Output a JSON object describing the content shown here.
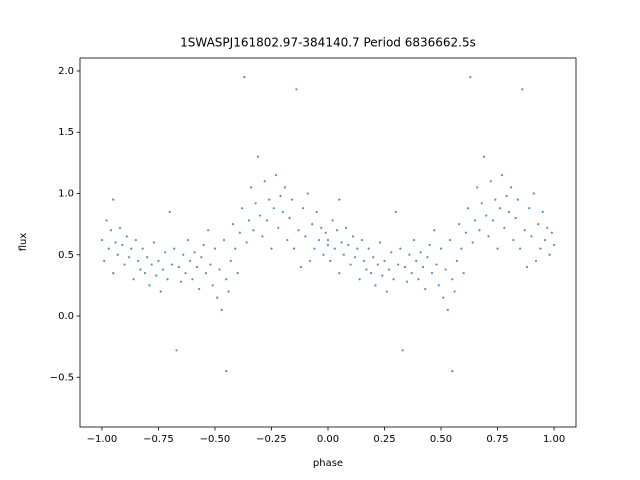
{
  "chart_data": {
    "type": "scatter",
    "title": "1SWASPJ161802.97-384140.7 Period 6836662.5s",
    "x_label": "phase",
    "y_label": "flux",
    "xlim": [
      -1.097,
      1.097
    ],
    "ylim": [
      -0.906,
      2.106
    ],
    "xticks": [
      {
        "value": -1,
        "label": "−1.00"
      },
      {
        "value": -0.75,
        "label": "−0.75"
      },
      {
        "value": -0.5,
        "label": "−0.50"
      },
      {
        "value": -0.25,
        "label": "−0.25"
      },
      {
        "value": 0,
        "label": "0.00"
      },
      {
        "value": 0.25,
        "label": "0.25"
      },
      {
        "value": 0.5,
        "label": "0.50"
      },
      {
        "value": 0.75,
        "label": "0.75"
      },
      {
        "value": 1,
        "label": "1.00"
      }
    ],
    "yticks": [
      {
        "value": -0.5,
        "label": "−0.5"
      },
      {
        "value": 0,
        "label": "0.0"
      },
      {
        "value": 0.5,
        "label": "0.5"
      },
      {
        "value": 1,
        "label": "1.0"
      },
      {
        "value": 1.5,
        "label": "1.5"
      },
      {
        "value": 2,
        "label": "2.0"
      }
    ],
    "color": "#1f77b4",
    "x": [
      -1,
      -0.99,
      -0.98,
      -0.97,
      -0.96,
      -0.95,
      -0.95,
      -0.94,
      -0.93,
      -0.92,
      -0.91,
      -0.9,
      -0.89,
      -0.88,
      -0.87,
      -0.86,
      -0.85,
      -0.84,
      -0.83,
      -0.82,
      -0.81,
      -0.8,
      -0.79,
      -0.78,
      -0.77,
      -0.76,
      -0.75,
      -0.74,
      -0.73,
      -0.72,
      -0.71,
      -0.7,
      -0.69,
      -0.68,
      -0.67,
      -0.66,
      -0.65,
      -0.64,
      -0.63,
      -0.62,
      -0.61,
      -0.6,
      -0.59,
      -0.58,
      -0.57,
      -0.56,
      -0.55,
      -0.54,
      -0.53,
      -0.52,
      -0.51,
      -0.5,
      -0.49,
      -0.48,
      -0.47,
      -0.46,
      -0.45,
      -0.45,
      -0.44,
      -0.43,
      -0.42,
      -0.41,
      -0.4,
      -0.39,
      -0.38,
      -0.37,
      -0.36,
      -0.35,
      -0.34,
      -0.33,
      -0.32,
      -0.31,
      -0.3,
      -0.29,
      -0.28,
      -0.27,
      -0.26,
      -0.25,
      -0.24,
      -0.23,
      -0.22,
      -0.21,
      -0.2,
      -0.19,
      -0.18,
      -0.17,
      -0.16,
      -0.15,
      -0.14,
      -0.13,
      -0.12,
      -0.11,
      -0.1,
      -0.09,
      -0.08,
      -0.07,
      -0.06,
      -0.05,
      -0.04,
      -0.03,
      -0.02,
      -0.01,
      0,
      0,
      0.01,
      0.02,
      0.03,
      0.04,
      0.05,
      0.05,
      0.06,
      0.07,
      0.08,
      0.09,
      0.1,
      0.11,
      0.12,
      0.13,
      0.14,
      0.15,
      0.16,
      0.17,
      0.18,
      0.19,
      0.2,
      0.21,
      0.22,
      0.23,
      0.24,
      0.25,
      0.26,
      0.27,
      0.28,
      0.29,
      0.3,
      0.31,
      0.32,
      0.33,
      0.34,
      0.35,
      0.36,
      0.37,
      0.38,
      0.39,
      0.4,
      0.41,
      0.42,
      0.43,
      0.44,
      0.45,
      0.46,
      0.47,
      0.48,
      0.49,
      0.5,
      0.51,
      0.52,
      0.53,
      0.54,
      0.55,
      0.55,
      0.56,
      0.57,
      0.58,
      0.59,
      0.6,
      0.61,
      0.62,
      0.63,
      0.64,
      0.65,
      0.66,
      0.67,
      0.68,
      0.69,
      0.7,
      0.71,
      0.72,
      0.73,
      0.74,
      0.75,
      0.76,
      0.77,
      0.78,
      0.79,
      0.8,
      0.81,
      0.82,
      0.83,
      0.84,
      0.85,
      0.86,
      0.87,
      0.88,
      0.89,
      0.9,
      0.91,
      0.92,
      0.93,
      0.94,
      0.95,
      0.96,
      0.97,
      0.98,
      0.99,
      1
    ],
    "values": [
      0.62,
      0.45,
      0.78,
      0.55,
      0.7,
      0.35,
      0.95,
      0.6,
      0.5,
      0.72,
      0.58,
      0.42,
      0.65,
      0.48,
      0.55,
      0.3,
      0.62,
      0.45,
      0.38,
      0.55,
      0.35,
      0.48,
      0.25,
      0.42,
      0.6,
      0.33,
      0.45,
      0.2,
      0.38,
      0.52,
      0.3,
      0.85,
      0.42,
      0.55,
      -0.28,
      0.4,
      0.28,
      0.5,
      0.35,
      0.62,
      0.45,
      0.3,
      0.52,
      0.4,
      0.22,
      0.48,
      0.58,
      0.35,
      0.7,
      0.42,
      0.25,
      0.55,
      0.15,
      0.38,
      0.05,
      0.62,
      -0.45,
      0.3,
      0.2,
      0.45,
      0.75,
      0.55,
      0.35,
      0.68,
      0.88,
      1.95,
      0.6,
      0.78,
      1.05,
      0.7,
      0.92,
      1.3,
      0.82,
      0.65,
      1.1,
      0.78,
      0.95,
      0.55,
      0.88,
      1.15,
      0.72,
      0.98,
      0.85,
      1.05,
      0.62,
      0.8,
      0.95,
      0.55,
      1.85,
      0.7,
      0.4,
      0.88,
      0.65,
      1,
      0.45,
      0.75,
      0.55,
      0.85,
      0.62,
      0.72,
      0.5,
      0.68,
      0.58,
      0.62,
      0.45,
      0.78,
      0.55,
      0.7,
      0.35,
      0.95,
      0.6,
      0.5,
      0.72,
      0.58,
      0.42,
      0.65,
      0.48,
      0.55,
      0.3,
      0.62,
      0.45,
      0.38,
      0.55,
      0.35,
      0.48,
      0.25,
      0.42,
      0.6,
      0.33,
      0.45,
      0.2,
      0.38,
      0.52,
      0.3,
      0.85,
      0.42,
      0.55,
      -0.28,
      0.4,
      0.28,
      0.5,
      0.35,
      0.62,
      0.45,
      0.3,
      0.52,
      0.4,
      0.22,
      0.48,
      0.58,
      0.35,
      0.7,
      0.42,
      0.25,
      0.55,
      0.15,
      0.38,
      0.05,
      0.62,
      -0.45,
      0.3,
      0.2,
      0.45,
      0.75,
      0.55,
      0.35,
      0.68,
      0.88,
      1.95,
      0.6,
      0.78,
      1.05,
      0.7,
      0.92,
      1.3,
      0.82,
      0.65,
      1.1,
      0.78,
      0.95,
      0.55,
      0.88,
      1.15,
      0.72,
      0.98,
      0.85,
      1.05,
      0.62,
      0.8,
      0.95,
      0.55,
      1.85,
      0.7,
      0.4,
      0.88,
      0.65,
      1,
      0.45,
      0.75,
      0.55,
      0.85,
      0.62,
      0.72,
      0.5,
      0.68,
      0.58
    ]
  }
}
